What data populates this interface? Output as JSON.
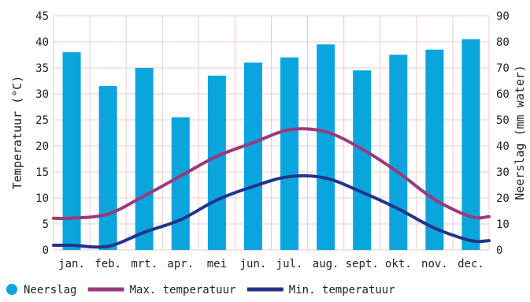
{
  "chart_data": {
    "type": "bar+line",
    "categories": [
      "jan.",
      "feb.",
      "mrt.",
      "apr.",
      "mei",
      "jun.",
      "jul.",
      "aug.",
      "sept.",
      "okt.",
      "nov.",
      "dec."
    ],
    "series": [
      {
        "name": "Neerslag",
        "type": "bar",
        "axis": "right",
        "color": "#0aa5dc",
        "values": [
          76,
          63,
          70,
          51,
          67,
          72,
          74,
          79,
          69,
          75,
          77,
          81
        ]
      },
      {
        "name": "Max. temperatuur",
        "type": "line",
        "axis": "left",
        "color": "#9b3a7b",
        "values": [
          6.1,
          6.9,
          10.4,
          14.2,
          18.0,
          20.6,
          23.1,
          22.7,
          19.4,
          14.9,
          9.7,
          6.4
        ]
      },
      {
        "name": "Min. temperatuur",
        "type": "line",
        "axis": "left",
        "color": "#24338a",
        "values": [
          0.9,
          0.7,
          3.4,
          5.8,
          9.6,
          12.2,
          14.1,
          13.8,
          11.1,
          7.9,
          4.2,
          1.8
        ]
      }
    ],
    "y_left": {
      "label": "Temperatuur (°C)",
      "ylim": [
        0,
        45
      ],
      "ticks": [
        "0",
        "5",
        "10",
        "15",
        "20",
        "25",
        "30",
        "35",
        "40",
        "45"
      ]
    },
    "y_right": {
      "label": "Neerslag (mm water)",
      "ylim": [
        0,
        90
      ],
      "ticks": [
        "0",
        "10",
        "20",
        "30",
        "40",
        "50",
        "60",
        "70",
        "80",
        "90"
      ]
    },
    "grid": true,
    "grid_color": "#f2c8c8",
    "legend_position": "bottom",
    "legend": [
      "Neerslag",
      "Max. temperatuur",
      "Min. temperatuur"
    ]
  }
}
